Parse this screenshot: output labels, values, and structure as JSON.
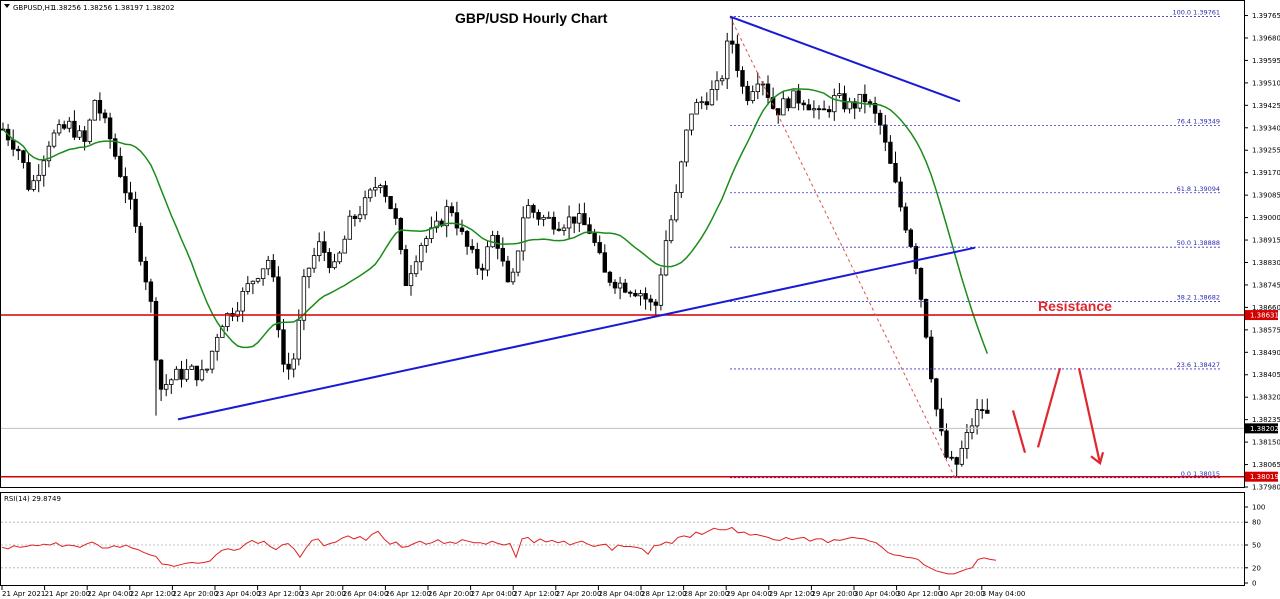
{
  "chart_info": {
    "symbol_label": "GBPUSD,H1",
    "ohlc_text": "1.38256 1.38256 1.38197 1.38202",
    "title": "GBP/USD Hourly Chart",
    "rsi_label": "RSI(14) 29.8749"
  },
  "colors": {
    "candle": "#000000",
    "sma": "#1a8c1a",
    "trendline": "#1a1ad6",
    "horizontal_level": "#d40000",
    "fib_line": "#3434c8",
    "fib_diagonal": "#e05050",
    "rsi_line": "#e02020",
    "rsi_levels": "#b0b0b0",
    "arrow": "#e0262e",
    "current_price_line": "#c0c0c0",
    "price_tag_red": "#d40000",
    "price_tag_black": "#000000"
  },
  "chart_data": {
    "type": "candlestick",
    "title": "GBP/USD Hourly Chart",
    "symbol": "GBPUSD",
    "timeframe": "H1",
    "y_ticks": [
      "1.39765",
      "1.39680",
      "1.39595",
      "1.39510",
      "1.39425",
      "1.39340",
      "1.39255",
      "1.39170",
      "1.39085",
      "1.39000",
      "1.38915",
      "1.38830",
      "1.38745",
      "1.38660",
      "1.38575",
      "1.38490",
      "1.38405",
      "1.38320",
      "1.38235",
      "1.38150",
      "1.38065",
      "1.37980"
    ],
    "ylim": [
      1.3798,
      1.3982
    ],
    "x_ticks": [
      "21 Apr 2021",
      "21 Apr 20:00",
      "22 Apr 04:00",
      "22 Apr 12:00",
      "22 Apr 20:00",
      "23 Apr 04:00",
      "23 Apr 12:00",
      "23 Apr 20:00",
      "26 Apr 04:00",
      "26 Apr 12:00",
      "26 Apr 20:00",
      "27 Apr 04:00",
      "27 Apr 12:00",
      "27 Apr 20:00",
      "28 Apr 04:00",
      "28 Apr 12:00",
      "28 Apr 20:00",
      "29 Apr 04:00",
      "29 Apr 12:00",
      "29 Apr 20:00",
      "30 Apr 04:00",
      "30 Apr 12:00",
      "30 Apr 20:00",
      "3 May 04:00"
    ],
    "price_tags": [
      {
        "value": 1.38631,
        "text": "1.38631",
        "color": "red"
      },
      {
        "value": 1.38202,
        "text": "1.38202",
        "color": "black"
      },
      {
        "value": 1.38019,
        "text": "1.38019",
        "color": "red"
      }
    ],
    "horizontal_levels": [
      1.38631,
      1.38019
    ],
    "current_price": 1.38202,
    "fibonacci": [
      {
        "label": "100.0",
        "value": 1.39761,
        "text": "1.39761"
      },
      {
        "label": "76.4",
        "value": 1.39349,
        "text": "1.39349"
      },
      {
        "label": "61.8",
        "value": 1.39094,
        "text": "1.39094"
      },
      {
        "label": "50.0",
        "value": 1.38888,
        "text": "1.38888"
      },
      {
        "label": "38.2",
        "value": 1.38682,
        "text": "1.38682"
      },
      {
        "label": "23.6",
        "value": 1.38427,
        "text": "1.38427"
      },
      {
        "label": "0.0",
        "value": 1.38015,
        "text": "1.38015"
      }
    ],
    "annotations": [
      {
        "text": "Resistance"
      }
    ],
    "rsi": {
      "label": "RSI(14) 29.8749",
      "ticks": [
        "100",
        "80",
        "50",
        "20",
        "0"
      ],
      "levels": [
        80,
        50,
        20
      ],
      "ylim": [
        0,
        100
      ],
      "points": [
        [
          0,
          47
        ],
        [
          6,
          45
        ],
        [
          12,
          49
        ],
        [
          18,
          47
        ],
        [
          24,
          48
        ],
        [
          30,
          50
        ],
        [
          36,
          49
        ],
        [
          42,
          51
        ],
        [
          48,
          50
        ],
        [
          54,
          53
        ],
        [
          60,
          48
        ],
        [
          66,
          50
        ],
        [
          72,
          49
        ],
        [
          78,
          47
        ],
        [
          84,
          51
        ],
        [
          90,
          54
        ],
        [
          96,
          50
        ],
        [
          100,
          46
        ],
        [
          106,
          46
        ],
        [
          112,
          49
        ],
        [
          118,
          47
        ],
        [
          124,
          50
        ],
        [
          130,
          46
        ],
        [
          136,
          44
        ],
        [
          142,
          40
        ],
        [
          148,
          37
        ],
        [
          154,
          35
        ],
        [
          160,
          25
        ],
        [
          166,
          24
        ],
        [
          172,
          22
        ],
        [
          178,
          24
        ],
        [
          184,
          26
        ],
        [
          190,
          27
        ],
        [
          196,
          26
        ],
        [
          202,
          27
        ],
        [
          208,
          29
        ],
        [
          214,
          37
        ],
        [
          220,
          43
        ],
        [
          226,
          45
        ],
        [
          232,
          43
        ],
        [
          238,
          45
        ],
        [
          244,
          52
        ],
        [
          250,
          56
        ],
        [
          256,
          52
        ],
        [
          262,
          55
        ],
        [
          268,
          48
        ],
        [
          274,
          44
        ],
        [
          280,
          50
        ],
        [
          286,
          52
        ],
        [
          292,
          45
        ],
        [
          298,
          34
        ],
        [
          304,
          46
        ],
        [
          310,
          56
        ],
        [
          316,
          58
        ],
        [
          322,
          49
        ],
        [
          328,
          52
        ],
        [
          334,
          54
        ],
        [
          340,
          59
        ],
        [
          346,
          62
        ],
        [
          352,
          58
        ],
        [
          358,
          61
        ],
        [
          364,
          56
        ],
        [
          370,
          64
        ],
        [
          376,
          68
        ],
        [
          382,
          58
        ],
        [
          388,
          51
        ],
        [
          394,
          54
        ],
        [
          400,
          47
        ],
        [
          406,
          48
        ],
        [
          412,
          52
        ],
        [
          418,
          55
        ],
        [
          424,
          51
        ],
        [
          430,
          53
        ],
        [
          436,
          57
        ],
        [
          442,
          52
        ],
        [
          448,
          54
        ],
        [
          454,
          52
        ],
        [
          460,
          57
        ],
        [
          466,
          55
        ],
        [
          472,
          53
        ],
        [
          478,
          53
        ],
        [
          484,
          51
        ],
        [
          490,
          55
        ],
        [
          496,
          52
        ],
        [
          502,
          50
        ],
        [
          508,
          52
        ],
        [
          514,
          34
        ],
        [
          520,
          58
        ],
        [
          526,
          60
        ],
        [
          532,
          53
        ],
        [
          538,
          58
        ],
        [
          544,
          54
        ],
        [
          550,
          56
        ],
        [
          556,
          53
        ],
        [
          562,
          55
        ],
        [
          568,
          50
        ],
        [
          574,
          53
        ],
        [
          580,
          55
        ],
        [
          586,
          51
        ],
        [
          592,
          48
        ],
        [
          598,
          50
        ],
        [
          604,
          51
        ],
        [
          610,
          43
        ],
        [
          616,
          50
        ],
        [
          622,
          48
        ],
        [
          628,
          48
        ],
        [
          634,
          47
        ],
        [
          640,
          45
        ],
        [
          646,
          38
        ],
        [
          652,
          49
        ],
        [
          658,
          50
        ],
        [
          664,
          54
        ],
        [
          670,
          52
        ],
        [
          676,
          60
        ],
        [
          682,
          62
        ],
        [
          688,
          60
        ],
        [
          694,
          67
        ],
        [
          700,
          64
        ],
        [
          706,
          68
        ],
        [
          712,
          72
        ],
        [
          718,
          70
        ],
        [
          724,
          70
        ],
        [
          730,
          73
        ],
        [
          736,
          66
        ],
        [
          742,
          67
        ],
        [
          748,
          63
        ],
        [
          754,
          64
        ],
        [
          760,
          62
        ],
        [
          766,
          60
        ],
        [
          772,
          57
        ],
        [
          778,
          56
        ],
        [
          784,
          60
        ],
        [
          790,
          57
        ],
        [
          796,
          59
        ],
        [
          802,
          60
        ],
        [
          808,
          55
        ],
        [
          814,
          58
        ],
        [
          820,
          58
        ],
        [
          826,
          53
        ],
        [
          832,
          57
        ],
        [
          838,
          56
        ],
        [
          844,
          58
        ],
        [
          850,
          60
        ],
        [
          856,
          59
        ],
        [
          862,
          58
        ],
        [
          868,
          55
        ],
        [
          874,
          53
        ],
        [
          880,
          47
        ],
        [
          886,
          40
        ],
        [
          892,
          37
        ],
        [
          898,
          36
        ],
        [
          904,
          34
        ],
        [
          910,
          33
        ],
        [
          916,
          31
        ],
        [
          922,
          24
        ],
        [
          928,
          20
        ],
        [
          934,
          16
        ],
        [
          940,
          14
        ],
        [
          946,
          12
        ],
        [
          952,
          12
        ],
        [
          958,
          15
        ],
        [
          964,
          18
        ],
        [
          970,
          20
        ],
        [
          976,
          31
        ],
        [
          982,
          33
        ],
        [
          988,
          31
        ],
        [
          994,
          30
        ]
      ]
    }
  }
}
